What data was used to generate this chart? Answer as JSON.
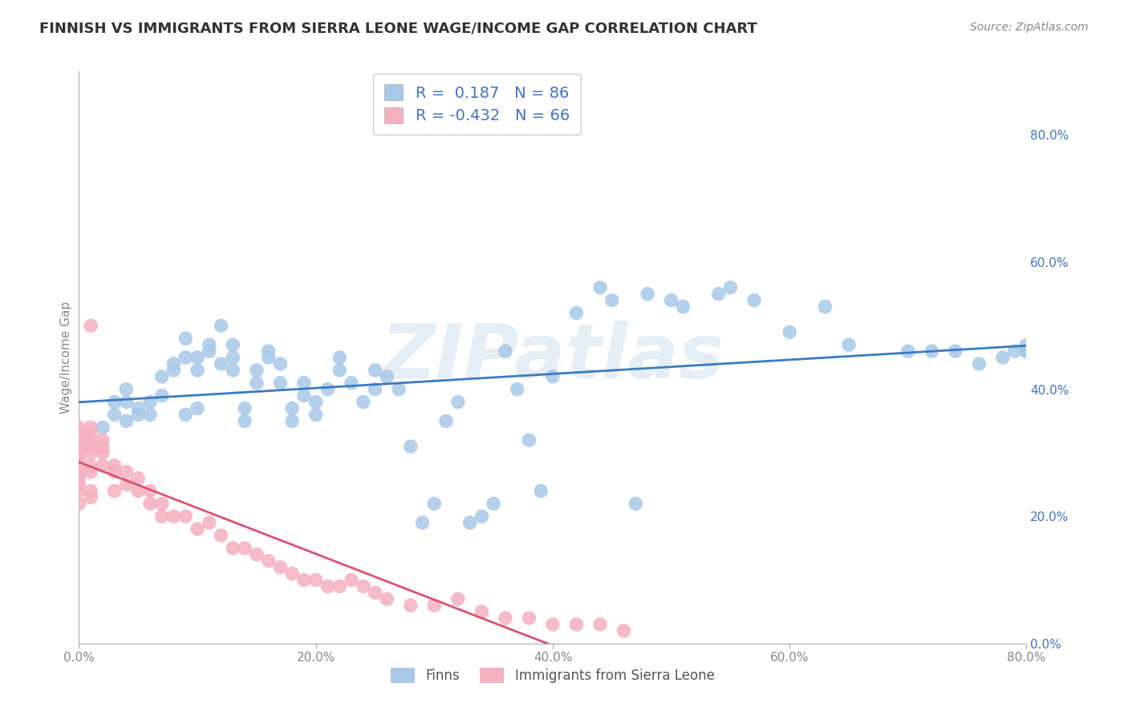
{
  "title": "FINNISH VS IMMIGRANTS FROM SIERRA LEONE WAGE/INCOME GAP CORRELATION CHART",
  "source": "Source: ZipAtlas.com",
  "ylabel": "Wage/Income Gap",
  "x_min": 0.0,
  "x_max": 0.8,
  "y_min": 0.0,
  "y_max": 0.9,
  "y_ticks": [
    0.0,
    0.2,
    0.4,
    0.6,
    0.8
  ],
  "x_ticks": [
    0.0,
    0.2,
    0.4,
    0.6,
    0.8
  ],
  "x_tick_labels": [
    "0.0%",
    "20.0%",
    "40.0%",
    "60.0%",
    "80.0%"
  ],
  "y_tick_labels_right": [
    "0.0%",
    "20.0%",
    "40.0%",
    "60.0%",
    "80.0%"
  ],
  "watermark": "ZIPatlas",
  "R_finns": 0.187,
  "N_finns": 86,
  "R_immigrants": -0.432,
  "N_immigrants": 66,
  "finns_scatter_color": "#a8c8e8",
  "immigrants_scatter_color": "#f5b0c0",
  "trend_finns_color": "#3a7bbf",
  "trend_immigrants_color": "#d9536e",
  "background_color": "#ffffff",
  "grid_color": "#cccccc",
  "title_fontsize": 13,
  "axis_label_fontsize": 11,
  "tick_fontsize": 11,
  "finns_x": [
    0.02,
    0.03,
    0.03,
    0.04,
    0.04,
    0.04,
    0.05,
    0.05,
    0.06,
    0.06,
    0.07,
    0.07,
    0.08,
    0.08,
    0.09,
    0.09,
    0.09,
    0.1,
    0.1,
    0.1,
    0.11,
    0.11,
    0.12,
    0.12,
    0.13,
    0.13,
    0.13,
    0.14,
    0.14,
    0.15,
    0.15,
    0.16,
    0.16,
    0.17,
    0.17,
    0.18,
    0.18,
    0.19,
    0.19,
    0.2,
    0.2,
    0.21,
    0.22,
    0.22,
    0.23,
    0.24,
    0.25,
    0.25,
    0.26,
    0.27,
    0.28,
    0.29,
    0.3,
    0.31,
    0.32,
    0.33,
    0.34,
    0.35,
    0.36,
    0.37,
    0.38,
    0.39,
    0.4,
    0.42,
    0.44,
    0.45,
    0.47,
    0.48,
    0.5,
    0.51,
    0.54,
    0.55,
    0.57,
    0.6,
    0.63,
    0.65,
    0.7,
    0.72,
    0.74,
    0.76,
    0.78,
    0.79,
    0.8,
    0.8,
    0.8,
    0.8
  ],
  "finns_y": [
    0.34,
    0.36,
    0.38,
    0.35,
    0.38,
    0.4,
    0.37,
    0.36,
    0.38,
    0.36,
    0.42,
    0.39,
    0.44,
    0.43,
    0.48,
    0.45,
    0.36,
    0.37,
    0.43,
    0.45,
    0.46,
    0.47,
    0.44,
    0.5,
    0.47,
    0.45,
    0.43,
    0.35,
    0.37,
    0.41,
    0.43,
    0.45,
    0.46,
    0.41,
    0.44,
    0.35,
    0.37,
    0.39,
    0.41,
    0.36,
    0.38,
    0.4,
    0.43,
    0.45,
    0.41,
    0.38,
    0.4,
    0.43,
    0.42,
    0.4,
    0.31,
    0.19,
    0.22,
    0.35,
    0.38,
    0.19,
    0.2,
    0.22,
    0.46,
    0.4,
    0.32,
    0.24,
    0.42,
    0.52,
    0.56,
    0.54,
    0.22,
    0.55,
    0.54,
    0.53,
    0.55,
    0.56,
    0.54,
    0.49,
    0.53,
    0.47,
    0.46,
    0.46,
    0.46,
    0.44,
    0.45,
    0.46,
    0.47,
    0.46,
    0.46,
    0.46
  ],
  "immigrants_x": [
    0.0,
    0.0,
    0.0,
    0.0,
    0.0,
    0.0,
    0.0,
    0.0,
    0.0,
    0.0,
    0.0,
    0.0,
    0.01,
    0.01,
    0.01,
    0.01,
    0.01,
    0.01,
    0.01,
    0.01,
    0.01,
    0.01,
    0.02,
    0.02,
    0.02,
    0.02,
    0.03,
    0.03,
    0.03,
    0.04,
    0.04,
    0.05,
    0.05,
    0.06,
    0.06,
    0.07,
    0.07,
    0.08,
    0.09,
    0.1,
    0.11,
    0.12,
    0.13,
    0.14,
    0.15,
    0.16,
    0.17,
    0.18,
    0.19,
    0.2,
    0.21,
    0.22,
    0.23,
    0.24,
    0.25,
    0.26,
    0.28,
    0.3,
    0.32,
    0.34,
    0.36,
    0.38,
    0.4,
    0.42,
    0.44,
    0.46
  ],
  "immigrants_y": [
    0.34,
    0.33,
    0.32,
    0.31,
    0.3,
    0.29,
    0.28,
    0.27,
    0.26,
    0.25,
    0.24,
    0.22,
    0.5,
    0.34,
    0.33,
    0.32,
    0.31,
    0.3,
    0.28,
    0.27,
    0.24,
    0.23,
    0.32,
    0.31,
    0.3,
    0.28,
    0.28,
    0.27,
    0.24,
    0.27,
    0.25,
    0.26,
    0.24,
    0.24,
    0.22,
    0.22,
    0.2,
    0.2,
    0.2,
    0.18,
    0.19,
    0.17,
    0.15,
    0.15,
    0.14,
    0.13,
    0.12,
    0.11,
    0.1,
    0.1,
    0.09,
    0.09,
    0.1,
    0.09,
    0.08,
    0.07,
    0.06,
    0.06,
    0.07,
    0.05,
    0.04,
    0.04,
    0.03,
    0.03,
    0.03,
    0.02
  ]
}
